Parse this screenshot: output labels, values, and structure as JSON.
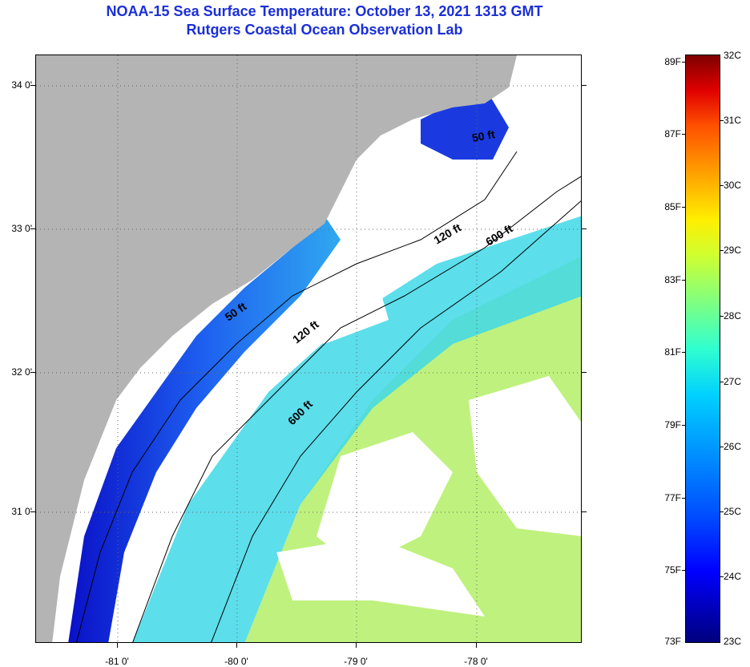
{
  "header": {
    "title": "NOAA-15 Sea Surface Temperature:  October 13, 2021 1313 GMT",
    "subtitle": "Rutgers Coastal Ocean Observation Lab"
  },
  "map": {
    "lat_labels": [
      "34 0'",
      "33 0'",
      "32 0'",
      "31 0'"
    ],
    "lon_labels": [
      "-81 0'",
      "-80 0'",
      "-79 0'",
      "-78 0'"
    ],
    "contour_labels": [
      "50 ft",
      "120 ft",
      "600 ft",
      "50 ft",
      "120 ft",
      "600 ft"
    ],
    "colors": {
      "land": "#b4b4b4",
      "cloud": "#ffffff",
      "cold_water": "#1030e0",
      "mid_water": "#20c0f0",
      "warm_water": "#a0f060"
    }
  },
  "colorbar": {
    "f_labels": [
      "89F",
      "87F",
      "85F",
      "83F",
      "81F",
      "79F",
      "77F",
      "75F",
      "73F"
    ],
    "c_labels": [
      "32C",
      "31C",
      "30C",
      "29C",
      "28C",
      "27C",
      "26C",
      "25C",
      "24C",
      "23C"
    ]
  }
}
